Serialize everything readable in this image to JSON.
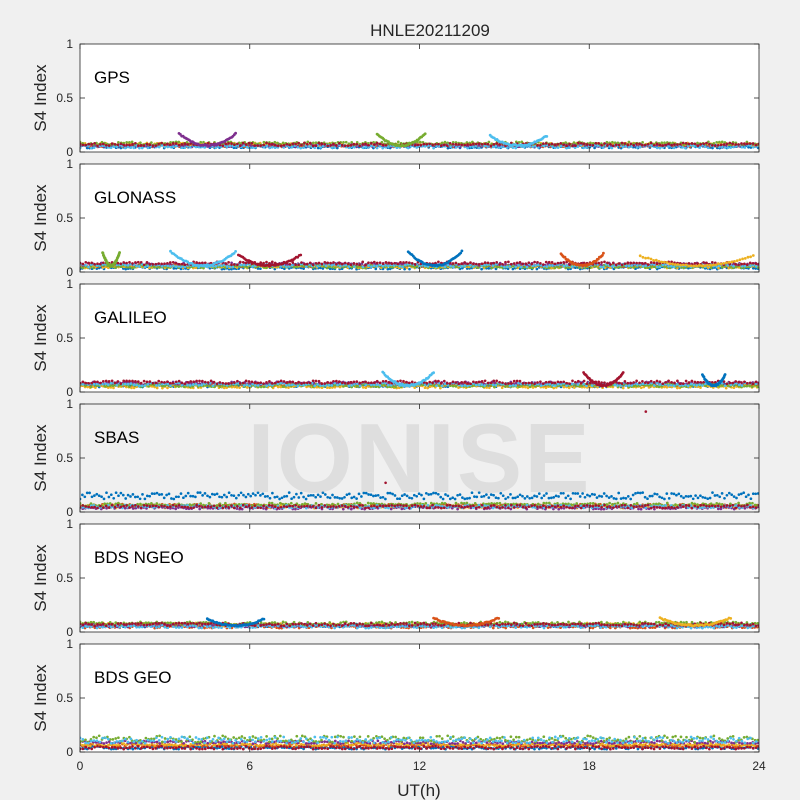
{
  "chart_data": {
    "type": "scatter",
    "title": "HNLE20211209",
    "xlabel": "UT(h)",
    "ylabel": "S4 Index",
    "xlim": [
      0,
      24
    ],
    "ylim": [
      0,
      1
    ],
    "xticks": [
      0,
      6,
      12,
      18,
      24
    ],
    "yticks": [
      0,
      0.5,
      1
    ],
    "ytick_labels": [
      "0",
      "0.5",
      "1"
    ],
    "grid": false,
    "legend": "none",
    "watermark": "IONISE",
    "series_colors": [
      "#0072BD",
      "#D95319",
      "#EDB120",
      "#7E2F8E",
      "#77AC30",
      "#4DBEEE",
      "#A2142F"
    ],
    "panels": [
      {
        "label": "GPS",
        "background": "#ffffff",
        "baseline_s4": [
          0.05,
          0.06,
          0.07,
          0.06,
          0.08,
          0.05,
          0.07
        ],
        "arcs": [
          {
            "start_h": 3.5,
            "end_h": 5.5,
            "peak_s4": 0.17
          },
          {
            "start_h": 10.5,
            "end_h": 12.2,
            "peak_s4": 0.17
          },
          {
            "start_h": 14.5,
            "end_h": 16.5,
            "peak_s4": 0.15
          }
        ],
        "outliers": []
      },
      {
        "label": "GLONASS",
        "background": "#ffffff",
        "baseline_s4": [
          0.04,
          0.06,
          0.05,
          0.07,
          0.05,
          0.06,
          0.08
        ],
        "arcs": [
          {
            "start_h": 0.8,
            "end_h": 1.4,
            "peak_s4": 0.18
          },
          {
            "start_h": 3.2,
            "end_h": 5.5,
            "peak_s4": 0.19
          },
          {
            "start_h": 5.6,
            "end_h": 7.8,
            "peak_s4": 0.16
          },
          {
            "start_h": 11.6,
            "end_h": 13.5,
            "peak_s4": 0.19
          },
          {
            "start_h": 17.0,
            "end_h": 18.5,
            "peak_s4": 0.17
          },
          {
            "start_h": 19.8,
            "end_h": 23.8,
            "peak_s4": 0.15
          }
        ],
        "outliers": []
      },
      {
        "label": "GALILEO",
        "background": "#ffffff",
        "baseline_s4": [
          0.06,
          0.07,
          0.05,
          0.08,
          0.06,
          0.07,
          0.09
        ],
        "arcs": [
          {
            "start_h": 10.7,
            "end_h": 12.5,
            "peak_s4": 0.18
          },
          {
            "start_h": 17.8,
            "end_h": 19.2,
            "peak_s4": 0.18
          },
          {
            "start_h": 22.0,
            "end_h": 22.8,
            "peak_s4": 0.16
          }
        ],
        "outliers": []
      },
      {
        "label": "SBAS",
        "background": "#f0f0f0",
        "baseline_s4": [
          0.15,
          0.06,
          0.05,
          0.04,
          0.07,
          0.05,
          0.05
        ],
        "arcs": [],
        "outliers": [
          {
            "t": 20.0,
            "s4": 0.93
          },
          {
            "t": 10.8,
            "s4": 0.27
          }
        ]
      },
      {
        "label": "BDS NGEO",
        "background": "#ffffff",
        "baseline_s4": [
          0.06,
          0.05,
          0.07,
          0.06,
          0.08,
          0.05,
          0.07
        ],
        "arcs": [
          {
            "start_h": 4.5,
            "end_h": 6.5,
            "peak_s4": 0.12
          },
          {
            "start_h": 12.5,
            "end_h": 14.8,
            "peak_s4": 0.13
          },
          {
            "start_h": 20.5,
            "end_h": 23.0,
            "peak_s4": 0.13
          }
        ],
        "outliers": []
      },
      {
        "label": "BDS GEO",
        "background": "#ffffff",
        "baseline_s4": [
          0.04,
          0.06,
          0.07,
          0.09,
          0.12,
          0.11,
          0.04
        ],
        "arcs": [],
        "outliers": []
      }
    ]
  }
}
